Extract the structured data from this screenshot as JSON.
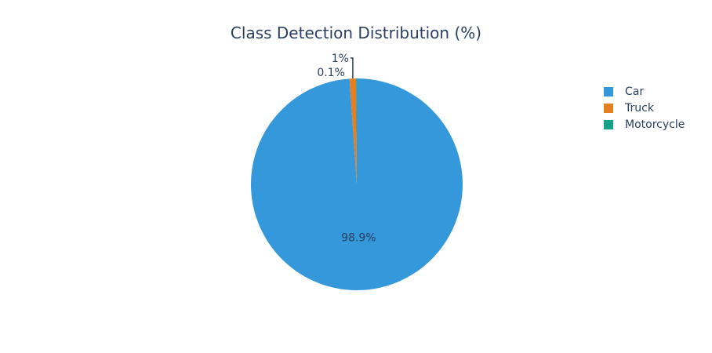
{
  "chart_data": {
    "type": "pie",
    "title": "Class Detection Distribution (%)",
    "labels": [
      "Car",
      "Truck",
      "Motorcycle"
    ],
    "values": [
      98.9,
      1,
      0.1
    ],
    "value_labels": [
      "98.9%",
      "1%",
      "0.1%"
    ],
    "colors": [
      "#3498db",
      "#e67e22",
      "#16a085"
    ],
    "legend_position": "top-right"
  }
}
